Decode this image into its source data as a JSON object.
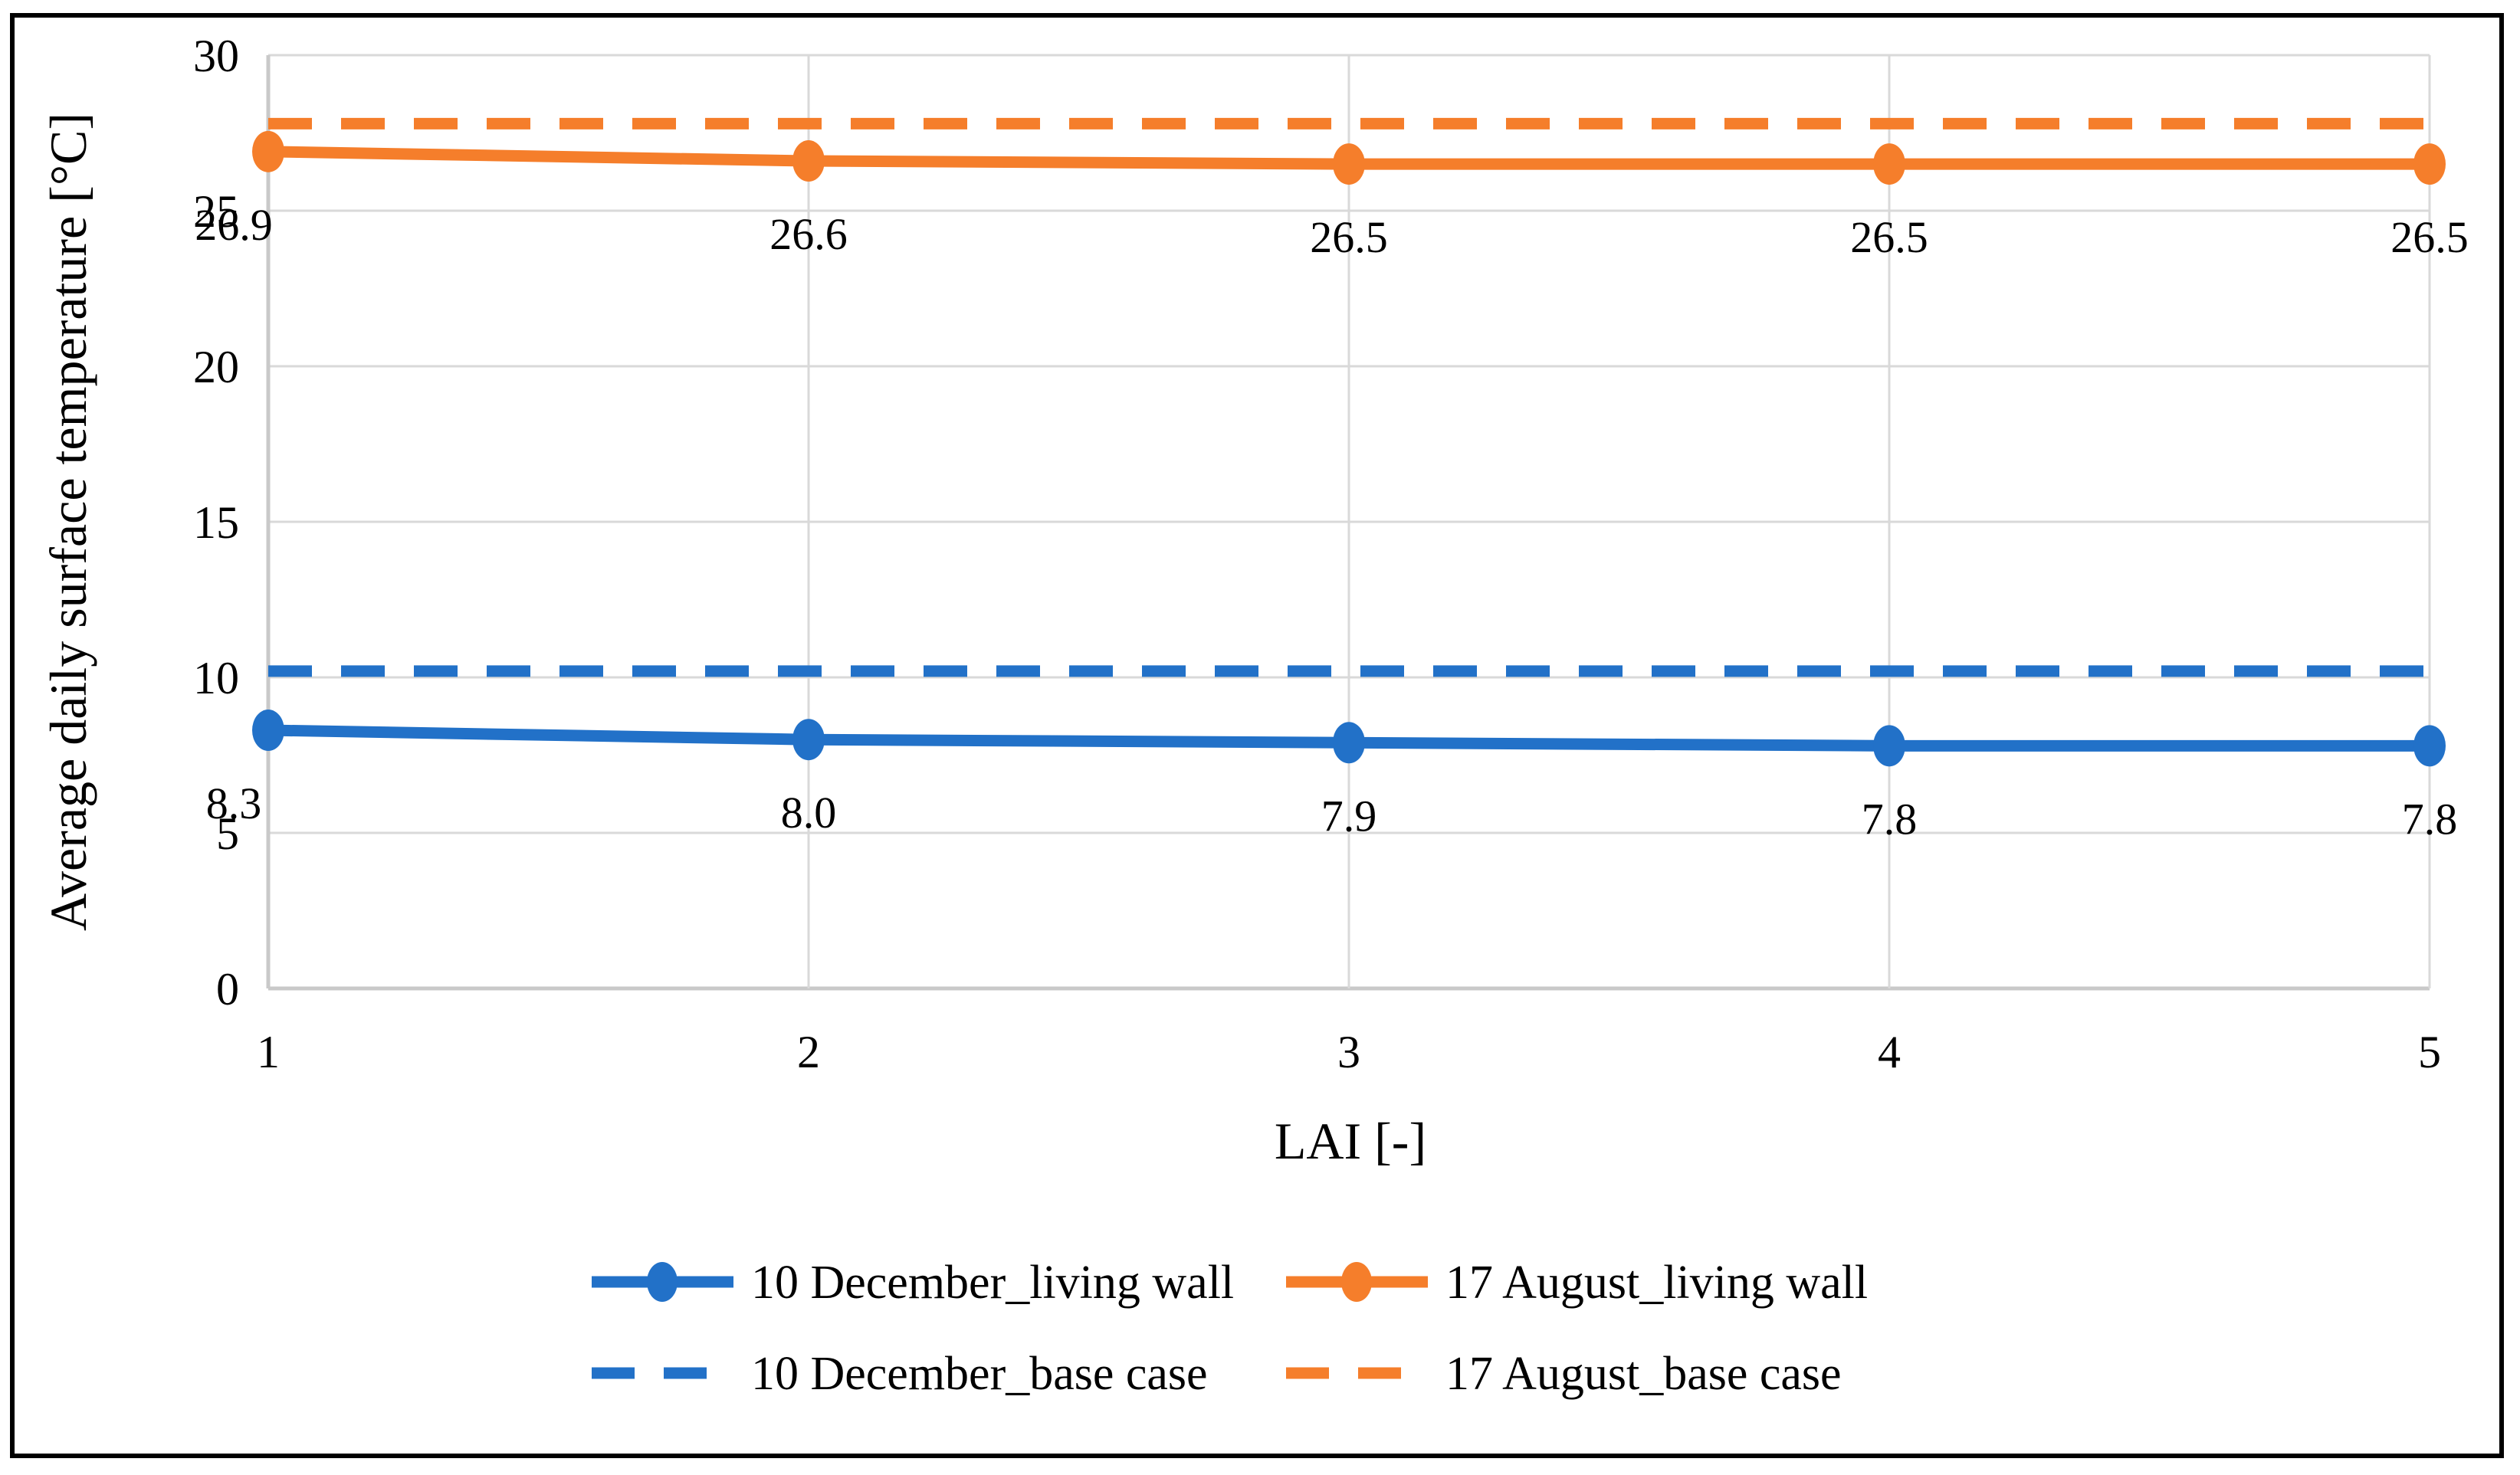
{
  "chart_data": {
    "type": "line",
    "title": "",
    "xlabel": "LAI [-]",
    "ylabel": "Average daily surface temperature [°C]",
    "x": [
      1,
      2,
      3,
      4,
      5
    ],
    "xticks": [
      "1",
      "2",
      "3",
      "4",
      "5"
    ],
    "yticks": [
      0,
      5,
      10,
      15,
      20,
      25,
      30
    ],
    "xlim": [
      1,
      5
    ],
    "ylim": [
      0,
      30
    ],
    "grid": true,
    "legend_position": "bottom",
    "series": [
      {
        "name": "10 December_living wall",
        "style": "solid",
        "marker": "circle",
        "color": "#2271C8",
        "values": [
          8.3,
          8.0,
          7.9,
          7.8,
          7.8
        ],
        "labels": [
          "8.3",
          "8.0",
          "7.9",
          "7.8",
          "7.8"
        ]
      },
      {
        "name": "17 August_living wall",
        "style": "solid",
        "marker": "circle",
        "color": "#F57E2B",
        "values": [
          26.9,
          26.6,
          26.5,
          26.5,
          26.5
        ],
        "labels": [
          "26.9",
          "26.6",
          "26.5",
          "26.5",
          "26.5"
        ]
      },
      {
        "name": "10 December_base case",
        "style": "dashed",
        "marker": "none",
        "color": "#2271C8",
        "constant_value": 10.2
      },
      {
        "name": "17 August_base case",
        "style": "dashed",
        "marker": "none",
        "color": "#F57E2B",
        "constant_value": 27.8
      }
    ],
    "colors": {
      "grid": "#D9D9D9",
      "axis": "#C9C9C9",
      "border": "#000000",
      "background": "#FFFFFF"
    }
  }
}
